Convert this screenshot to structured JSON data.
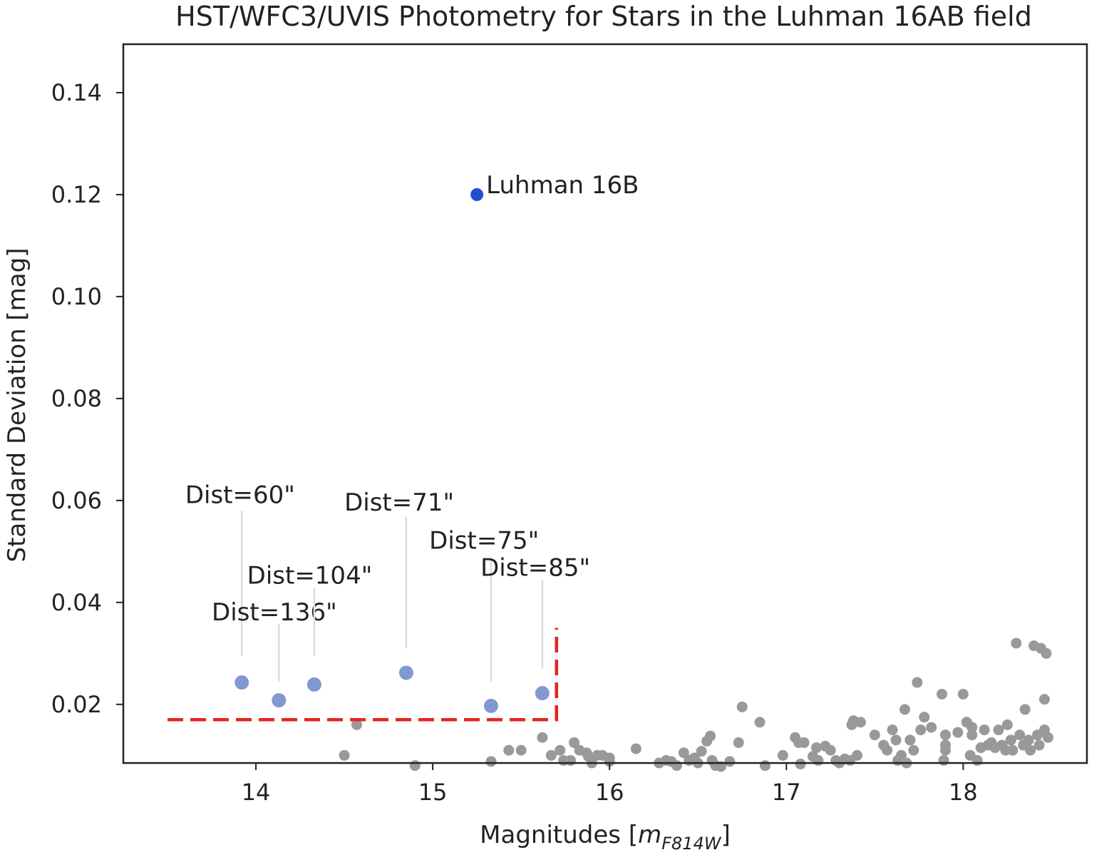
{
  "chart_data": {
    "type": "scatter",
    "title": "HST/WFC3/UVIS Photometry for Stars in the Luhman 16AB field",
    "xlabel_main": "Magnitudes [",
    "xlabel_math": "m",
    "xlabel_sub": "F814W",
    "xlabel_end": "]",
    "ylabel": "Standard Deviation [mag]",
    "xlim": [
      13.25,
      18.7
    ],
    "ylim": [
      0.0085,
      0.1495
    ],
    "xticks": [
      {
        "value": 14,
        "label": "14"
      },
      {
        "value": 15,
        "label": "15"
      },
      {
        "value": 16,
        "label": "16"
      },
      {
        "value": 17,
        "label": "17"
      },
      {
        "value": 18,
        "label": "18"
      }
    ],
    "yticks": [
      {
        "value": 0.02,
        "label": "0.02"
      },
      {
        "value": 0.04,
        "label": "0.04"
      },
      {
        "value": 0.06,
        "label": "0.06"
      },
      {
        "value": 0.08,
        "label": "0.08"
      },
      {
        "value": 0.1,
        "label": "0.10"
      },
      {
        "value": 0.12,
        "label": "0.12"
      },
      {
        "value": 0.14,
        "label": "0.14"
      }
    ],
    "colors": {
      "target": "#1f4fd1",
      "reference": "#7a92cf",
      "field": "#999999",
      "threshold": "#e8231f",
      "leader": "#dcdcdc"
    },
    "target": {
      "x": 15.25,
      "y": 0.12,
      "label": "Luhman 16B"
    },
    "reference_stars": [
      {
        "x": 13.92,
        "y": 0.0243,
        "label": "Dist=60\"",
        "label_x": 13.6,
        "label_y": 0.0595,
        "line_top": 0.058,
        "line_bottom": 0.0296
      },
      {
        "x": 14.13,
        "y": 0.0208,
        "label": "Dist=136\"",
        "label_x": 13.75,
        "label_y": 0.0365,
        "line_top": 0.0358,
        "line_bottom": 0.0245
      },
      {
        "x": 14.33,
        "y": 0.0239,
        "label": "Dist=104\"",
        "label_x": 13.95,
        "label_y": 0.0437,
        "line_top": 0.0428,
        "line_bottom": 0.0296
      },
      {
        "x": 14.85,
        "y": 0.0262,
        "label": "Dist=71\"",
        "label_x": 14.5,
        "label_y": 0.058,
        "line_top": 0.0568,
        "line_bottom": 0.031
      },
      {
        "x": 15.33,
        "y": 0.0197,
        "label": "Dist=75\"",
        "label_x": 14.98,
        "label_y": 0.0505,
        "line_top": 0.0489,
        "line_bottom": 0.0245
      },
      {
        "x": 15.62,
        "y": 0.0222,
        "label": "Dist=85\"",
        "label_x": 15.27,
        "label_y": 0.0452,
        "line_top": 0.0444,
        "line_bottom": 0.027
      }
    ],
    "threshold": {
      "x_start": 13.5,
      "x_end": 15.7,
      "y": 0.017,
      "y_top": 0.035
    },
    "field_stars": [
      [
        14.5,
        0.01
      ],
      [
        14.57,
        0.016
      ],
      [
        14.9,
        0.008
      ],
      [
        15.33,
        0.0088
      ],
      [
        15.43,
        0.011
      ],
      [
        15.5,
        0.011
      ],
      [
        15.62,
        0.0135
      ],
      [
        15.67,
        0.01
      ],
      [
        15.72,
        0.011
      ],
      [
        15.74,
        0.009
      ],
      [
        15.78,
        0.009
      ],
      [
        15.8,
        0.0125
      ],
      [
        15.83,
        0.011
      ],
      [
        15.87,
        0.0105
      ],
      [
        15.88,
        0.0098
      ],
      [
        15.9,
        0.0085
      ],
      [
        15.93,
        0.01
      ],
      [
        15.96,
        0.01
      ],
      [
        16.0,
        0.0095
      ],
      [
        16.0,
        0.0088
      ],
      [
        16.15,
        0.0113
      ],
      [
        16.28,
        0.0085
      ],
      [
        16.32,
        0.009
      ],
      [
        16.35,
        0.0088
      ],
      [
        16.38,
        0.008
      ],
      [
        16.42,
        0.0105
      ],
      [
        16.45,
        0.009
      ],
      [
        16.48,
        0.0095
      ],
      [
        16.5,
        0.0085
      ],
      [
        16.52,
        0.0108
      ],
      [
        16.55,
        0.0128
      ],
      [
        16.57,
        0.0138
      ],
      [
        16.58,
        0.009
      ],
      [
        16.6,
        0.008
      ],
      [
        16.63,
        0.0078
      ],
      [
        16.68,
        0.0088
      ],
      [
        16.73,
        0.0125
      ],
      [
        16.75,
        0.0195
      ],
      [
        16.85,
        0.0165
      ],
      [
        16.88,
        0.008
      ],
      [
        16.98,
        0.01
      ],
      [
        17.05,
        0.0135
      ],
      [
        17.07,
        0.0125
      ],
      [
        17.08,
        0.0083
      ],
      [
        17.1,
        0.0125
      ],
      [
        17.15,
        0.0098
      ],
      [
        17.17,
        0.0115
      ],
      [
        17.18,
        0.009
      ],
      [
        17.22,
        0.0118
      ],
      [
        17.25,
        0.011
      ],
      [
        17.28,
        0.009
      ],
      [
        17.3,
        0.0085
      ],
      [
        17.33,
        0.0093
      ],
      [
        17.36,
        0.009
      ],
      [
        17.37,
        0.016
      ],
      [
        17.38,
        0.0168
      ],
      [
        17.4,
        0.01
      ],
      [
        17.42,
        0.0165
      ],
      [
        17.5,
        0.014
      ],
      [
        17.55,
        0.012
      ],
      [
        17.57,
        0.011
      ],
      [
        17.6,
        0.015
      ],
      [
        17.62,
        0.013
      ],
      [
        17.63,
        0.009
      ],
      [
        17.65,
        0.01
      ],
      [
        17.67,
        0.019
      ],
      [
        17.68,
        0.0085
      ],
      [
        17.7,
        0.013
      ],
      [
        17.72,
        0.011
      ],
      [
        17.74,
        0.0243
      ],
      [
        17.76,
        0.015
      ],
      [
        17.78,
        0.0175
      ],
      [
        17.82,
        0.0155
      ],
      [
        17.88,
        0.022
      ],
      [
        17.89,
        0.009
      ],
      [
        17.9,
        0.011
      ],
      [
        17.9,
        0.012
      ],
      [
        17.9,
        0.014
      ],
      [
        17.97,
        0.0145
      ],
      [
        18.0,
        0.022
      ],
      [
        18.02,
        0.0165
      ],
      [
        18.04,
        0.01
      ],
      [
        18.05,
        0.014
      ],
      [
        18.05,
        0.0155
      ],
      [
        18.08,
        0.009
      ],
      [
        18.1,
        0.0115
      ],
      [
        18.12,
        0.015
      ],
      [
        18.14,
        0.012
      ],
      [
        18.16,
        0.0125
      ],
      [
        18.18,
        0.0115
      ],
      [
        18.2,
        0.015
      ],
      [
        18.22,
        0.012
      ],
      [
        18.24,
        0.011
      ],
      [
        18.25,
        0.016
      ],
      [
        18.27,
        0.013
      ],
      [
        18.28,
        0.011
      ],
      [
        18.3,
        0.032
      ],
      [
        18.32,
        0.014
      ],
      [
        18.34,
        0.012
      ],
      [
        18.35,
        0.019
      ],
      [
        18.37,
        0.013
      ],
      [
        18.38,
        0.011
      ],
      [
        18.4,
        0.0315
      ],
      [
        18.42,
        0.014
      ],
      [
        18.43,
        0.012
      ],
      [
        18.44,
        0.031
      ],
      [
        18.46,
        0.015
      ],
      [
        18.46,
        0.021
      ],
      [
        18.47,
        0.03
      ],
      [
        18.48,
        0.0135
      ]
    ]
  }
}
